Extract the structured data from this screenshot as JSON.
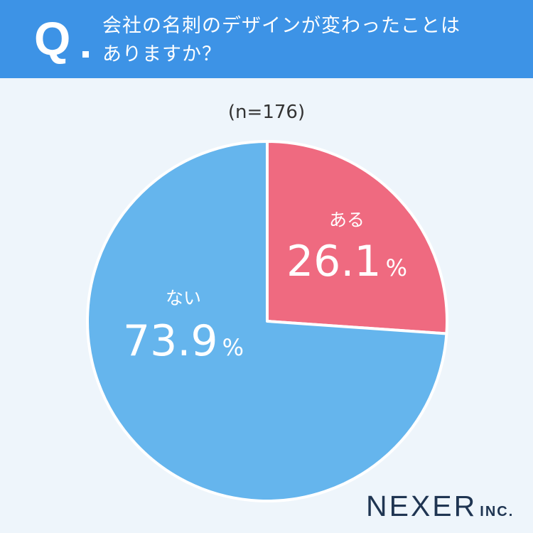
{
  "header": {
    "q_mark": "Q",
    "question_line1": "会社の名刺のデザインが変わったことは",
    "question_line2": "ありますか？"
  },
  "sample_label": "(n=176)",
  "chart_data": {
    "type": "pie",
    "title": "会社の名刺のデザインが変わったことはありますか？",
    "n": 176,
    "slices": [
      {
        "label": "ある",
        "value": 26.1,
        "color": "#ef6a80"
      },
      {
        "label": "ない",
        "value": 73.9,
        "color": "#65b5ed"
      }
    ],
    "unit": "%",
    "start": "12 o'clock, clockwise"
  },
  "logo": {
    "main": "NEXER",
    "sub": "INC."
  }
}
